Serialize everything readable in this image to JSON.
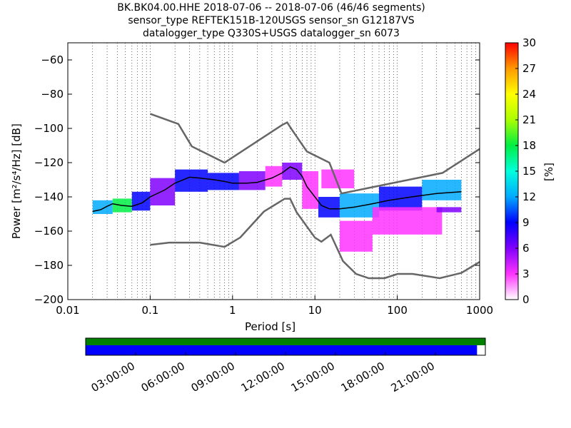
{
  "titles": {
    "line1": "BK.BK04.00.HHE   2018-07-06 -- 2018-07-06  (46/46 segments)",
    "line2": "sensor_type REFTEK151B-120USGS sensor_sn G12187VS",
    "line3": "datalogger_type Q330S+USGS datalogger_sn 6073"
  },
  "chart_data": [
    {
      "type": "heatmap",
      "xlabel": "Period [s]",
      "ylabel": "Power [m²/s⁴/Hz] [dB]",
      "x_scale": "log",
      "xlim": [
        0.01,
        1000
      ],
      "ylim": [
        -200,
        -50
      ],
      "x_ticks": [
        0.01,
        0.1,
        1,
        10,
        100,
        1000
      ],
      "x_tick_labels": [
        "0.01",
        "0.1",
        "1",
        "10",
        "100",
        "1000"
      ],
      "y_ticks": [
        -200,
        -180,
        -160,
        -140,
        -120,
        -100,
        -80,
        -60
      ],
      "y_tick_labels": [
        "−200",
        "−180",
        "−160",
        "−140",
        "−120",
        "−100",
        "−80",
        "−60"
      ],
      "grid": "dotted vertical",
      "colorbar": {
        "label": "[%]",
        "range": [
          0,
          30
        ],
        "ticks": [
          0,
          3,
          6,
          9,
          12,
          15,
          18,
          21,
          24,
          27,
          30
        ],
        "tick_labels": [
          "0",
          "3",
          "6",
          "9",
          "12",
          "15",
          "18",
          "21",
          "24",
          "27",
          "30"
        ],
        "colors": [
          "#ffffff",
          "#ff33ff",
          "#8000ff",
          "#0000ff",
          "#00aaff",
          "#00ffdd",
          "#00ee44",
          "#aaff00",
          "#ffff00",
          "#ff9900",
          "#ff0000"
        ]
      },
      "reference_curves": {
        "high_noise_model": [
          [
            0.1,
            -91.5
          ],
          [
            0.22,
            -97.4
          ],
          [
            0.32,
            -110.5
          ],
          [
            0.8,
            -120
          ],
          [
            4,
            -98
          ],
          [
            4.6,
            -96.5
          ],
          [
            5.3,
            -101
          ],
          [
            8,
            -113.5
          ],
          [
            15,
            -120
          ],
          [
            21,
            -138
          ],
          [
            354,
            -126
          ],
          [
            1000,
            -112
          ]
        ],
        "low_noise_model": [
          [
            0.1,
            -168
          ],
          [
            0.17,
            -166.7
          ],
          [
            0.4,
            -166.7
          ],
          [
            0.8,
            -169.2
          ],
          [
            1.24,
            -163.7
          ],
          [
            2.4,
            -148.6
          ],
          [
            4.3,
            -141.1
          ],
          [
            5,
            -141.1
          ],
          [
            6,
            -149
          ],
          [
            10,
            -163.8
          ],
          [
            12,
            -166.2
          ],
          [
            15.6,
            -162.1
          ],
          [
            21.9,
            -177.5
          ],
          [
            31.6,
            -185
          ],
          [
            45,
            -187.5
          ],
          [
            70,
            -187.5
          ],
          [
            101,
            -185
          ],
          [
            154,
            -185
          ],
          [
            328,
            -187.5
          ],
          [
            600,
            -184.4
          ],
          [
            1000,
            -178
          ]
        ]
      },
      "mode_curve": [
        [
          0.02,
          -148.5
        ],
        [
          0.025,
          -147.5
        ],
        [
          0.03,
          -145.5
        ],
        [
          0.035,
          -144
        ],
        [
          0.045,
          -145
        ],
        [
          0.06,
          -145.5
        ],
        [
          0.08,
          -143.5
        ],
        [
          0.1,
          -140
        ],
        [
          0.15,
          -136
        ],
        [
          0.2,
          -132
        ],
        [
          0.3,
          -128.5
        ],
        [
          0.4,
          -129
        ],
        [
          0.6,
          -130
        ],
        [
          0.8,
          -131
        ],
        [
          1,
          -132
        ],
        [
          1.5,
          -132
        ],
        [
          2,
          -131.5
        ],
        [
          3,
          -129
        ],
        [
          4,
          -126
        ],
        [
          5,
          -122.5
        ],
        [
          6,
          -124
        ],
        [
          7,
          -128
        ],
        [
          8,
          -134
        ],
        [
          10,
          -140
        ],
        [
          12,
          -145
        ],
        [
          15,
          -147
        ],
        [
          20,
          -147
        ],
        [
          30,
          -146
        ],
        [
          50,
          -144
        ],
        [
          80,
          -142
        ],
        [
          150,
          -140
        ],
        [
          300,
          -138
        ],
        [
          600,
          -137
        ]
      ],
      "density_bands": [
        {
          "x0": 0.02,
          "x1": 0.035,
          "y0": -150,
          "y1": -142,
          "pct": 12
        },
        {
          "x0": 0.035,
          "x1": 0.06,
          "y0": -149,
          "y1": -141,
          "pct": 18
        },
        {
          "x0": 0.06,
          "x1": 0.1,
          "y0": -148,
          "y1": -137,
          "pct": 9
        },
        {
          "x0": 0.1,
          "x1": 0.2,
          "y0": -145,
          "y1": -129,
          "pct": 6
        },
        {
          "x0": 0.2,
          "x1": 0.5,
          "y0": -137,
          "y1": -124,
          "pct": 8
        },
        {
          "x0": 0.5,
          "x1": 1.2,
          "y0": -136,
          "y1": -126,
          "pct": 10
        },
        {
          "x0": 1.2,
          "x1": 2.5,
          "y0": -136,
          "y1": -125,
          "pct": 5
        },
        {
          "x0": 2.5,
          "x1": 4,
          "y0": -134,
          "y1": -122,
          "pct": 4
        },
        {
          "x0": 4,
          "x1": 7,
          "y0": -130,
          "y1": -120,
          "pct": 6
        },
        {
          "x0": 7,
          "x1": 11,
          "y0": -147,
          "y1": -125,
          "pct": 3
        },
        {
          "x0": 11,
          "x1": 20,
          "y0": -152,
          "y1": -140,
          "pct": 9
        },
        {
          "x0": 20,
          "x1": 60,
          "y0": -152,
          "y1": -138,
          "pct": 12
        },
        {
          "x0": 60,
          "x1": 200,
          "y0": -148,
          "y1": -134,
          "pct": 9
        },
        {
          "x0": 200,
          "x1": 600,
          "y0": -142,
          "y1": -130,
          "pct": 13
        },
        {
          "x0": 12,
          "x1": 30,
          "y0": -135,
          "y1": -124,
          "pct": 2
        },
        {
          "x0": 20,
          "x1": 50,
          "y0": -172,
          "y1": -154,
          "pct": 2
        },
        {
          "x0": 50,
          "x1": 350,
          "y0": -162,
          "y1": -146,
          "pct": 2
        },
        {
          "x0": 300,
          "x1": 600,
          "y0": -149,
          "y1": -146,
          "pct": 6
        }
      ]
    },
    {
      "type": "bar",
      "description_of_coverage": "data availability timeline",
      "x_tick_labels": [
        "03:00:00",
        "06:00:00",
        "09:00:00",
        "12:00:00",
        "15:00:00",
        "18:00:00",
        "21:00:00"
      ],
      "x_ticks_hours": [
        3,
        6,
        9,
        12,
        15,
        18,
        21
      ],
      "xlim_hours": [
        0,
        24
      ],
      "series": [
        {
          "name": "",
          "start_hour": 0,
          "end_hour": 24,
          "color": "#008000"
        },
        {
          "name": "",
          "start_hour": 0,
          "end_hour": 23.5,
          "color": "#0000ff"
        }
      ]
    }
  ]
}
